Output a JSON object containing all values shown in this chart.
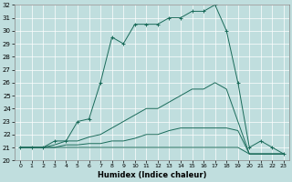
{
  "xlabel": "Humidex (Indice chaleur)",
  "xlim": [
    -0.5,
    23.5
  ],
  "ylim": [
    20,
    32
  ],
  "yticks": [
    20,
    21,
    22,
    23,
    24,
    25,
    26,
    27,
    28,
    29,
    30,
    31,
    32
  ],
  "xticks": [
    0,
    1,
    2,
    3,
    4,
    5,
    6,
    7,
    8,
    9,
    10,
    11,
    12,
    13,
    14,
    15,
    16,
    17,
    18,
    19,
    20,
    21,
    22,
    23
  ],
  "bg_color": "#c0dede",
  "line_color": "#1a6b5a",
  "grid_color": "#ffffff",
  "line1_x": [
    0,
    1,
    2,
    3,
    4,
    5,
    6,
    7,
    8,
    9,
    10,
    11,
    12,
    13,
    14,
    15,
    16,
    17,
    18,
    19,
    20,
    21,
    22,
    23
  ],
  "line1_y": [
    21.0,
    21.0,
    21.0,
    21.5,
    21.5,
    23.0,
    23.2,
    26.0,
    29.5,
    29.0,
    30.5,
    30.5,
    30.5,
    31.0,
    31.0,
    31.5,
    31.5,
    32.0,
    30.0,
    26.0,
    21.0,
    21.5,
    21.0,
    20.5
  ],
  "line2_x": [
    0,
    1,
    2,
    3,
    4,
    5,
    6,
    7,
    8,
    9,
    10,
    11,
    12,
    13,
    14,
    15,
    16,
    17,
    18,
    19,
    20,
    21,
    22,
    23
  ],
  "line2_y": [
    21.0,
    21.0,
    21.0,
    21.2,
    21.5,
    21.5,
    21.8,
    22.0,
    22.5,
    23.0,
    23.5,
    24.0,
    24.0,
    24.5,
    25.0,
    25.5,
    25.5,
    26.0,
    25.5,
    23.0,
    20.5,
    20.5,
    20.5,
    20.5
  ],
  "line3_x": [
    0,
    1,
    2,
    3,
    4,
    5,
    6,
    7,
    8,
    9,
    10,
    11,
    12,
    13,
    14,
    15,
    16,
    17,
    18,
    19,
    20,
    21,
    22,
    23
  ],
  "line3_y": [
    21.0,
    21.0,
    21.0,
    21.0,
    21.2,
    21.2,
    21.3,
    21.3,
    21.5,
    21.5,
    21.7,
    22.0,
    22.0,
    22.3,
    22.5,
    22.5,
    22.5,
    22.5,
    22.5,
    22.3,
    20.5,
    20.5,
    20.5,
    20.5
  ],
  "line4_x": [
    0,
    1,
    2,
    3,
    4,
    5,
    6,
    7,
    8,
    9,
    10,
    11,
    12,
    13,
    14,
    15,
    16,
    17,
    18,
    19,
    20,
    21,
    22,
    23
  ],
  "line4_y": [
    21.0,
    21.0,
    21.0,
    21.0,
    21.0,
    21.0,
    21.0,
    21.0,
    21.0,
    21.0,
    21.0,
    21.0,
    21.0,
    21.0,
    21.0,
    21.0,
    21.0,
    21.0,
    21.0,
    21.0,
    20.5,
    20.5,
    20.5,
    20.5
  ]
}
